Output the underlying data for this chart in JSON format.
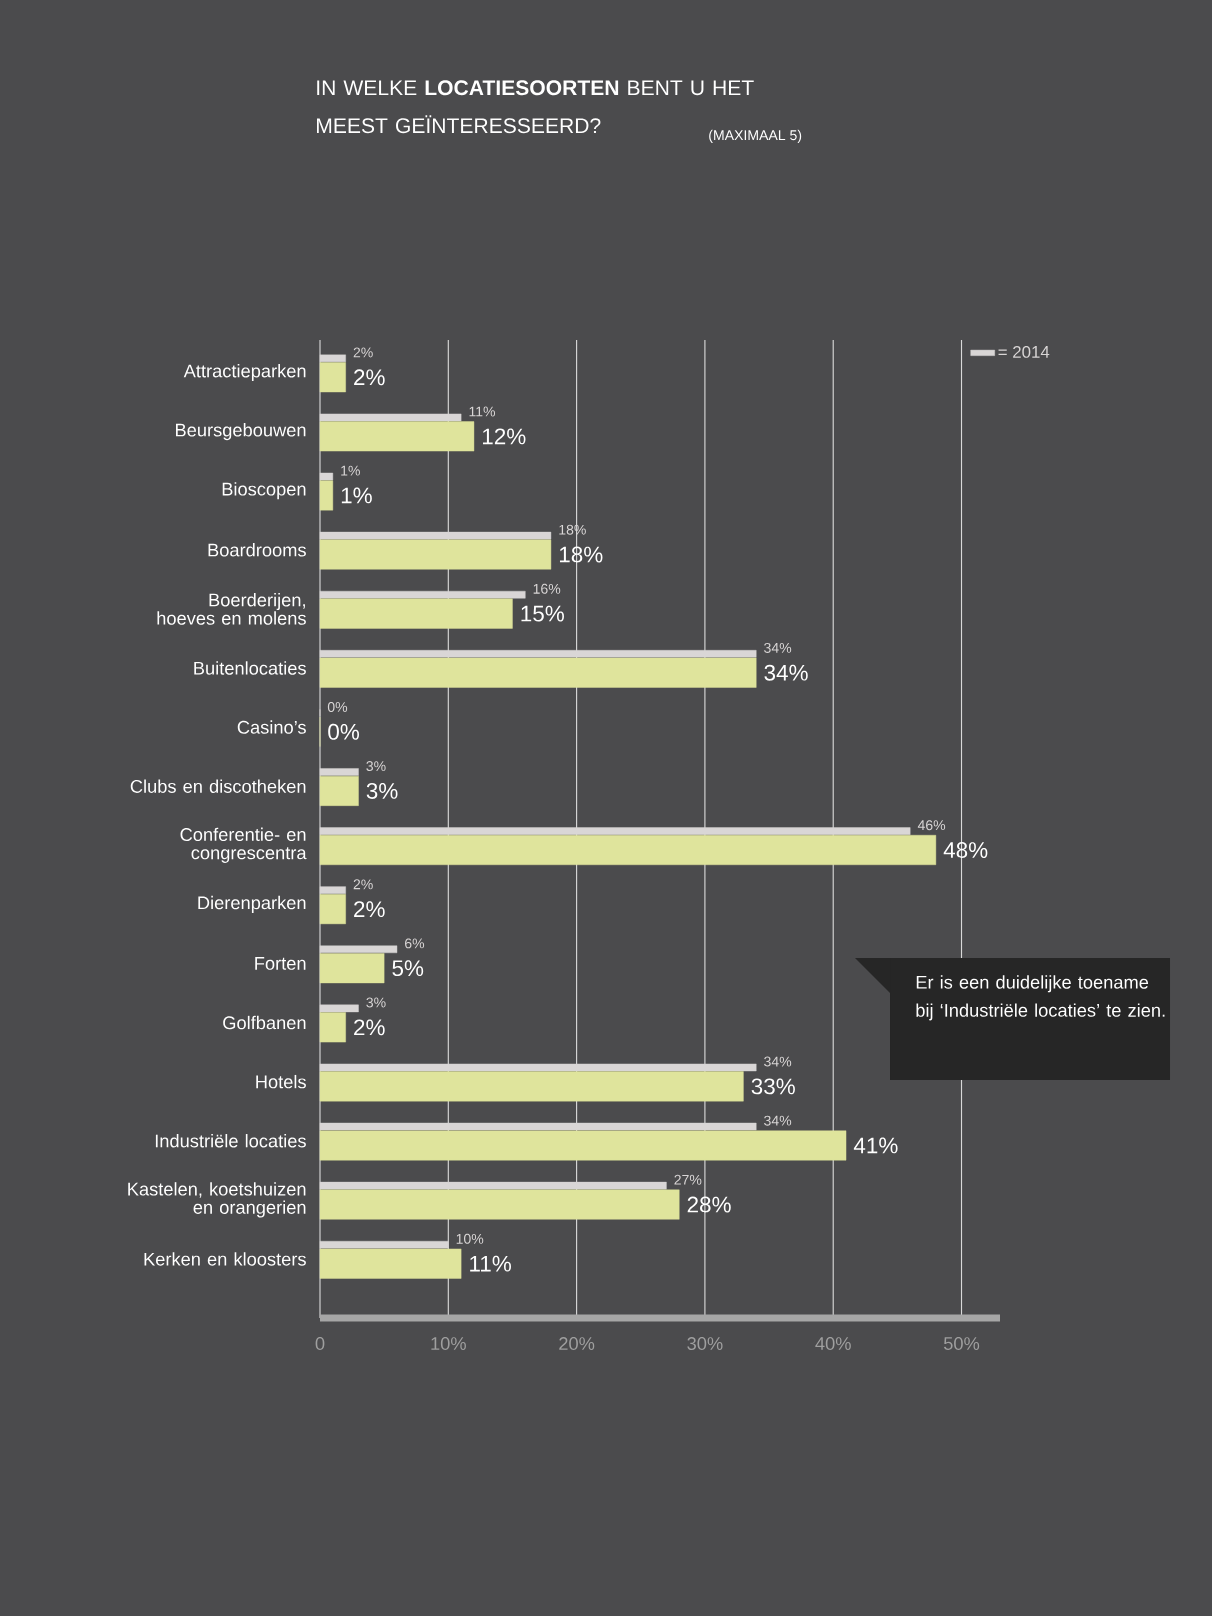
{
  "chart_data": {
    "type": "bar",
    "orientation": "horizontal",
    "title": "IN WELKE **LOCATIESOORTEN** BENT U HET MEEST GEÏNTERESSEERD?",
    "subtitle": "(MAXIMAAL 5)",
    "categories": [
      "Attractieparken",
      "Beursgebouwen",
      "Bioscopen",
      "Boardrooms",
      "Boerderijen, hoeves en molens",
      "Buitenlocaties",
      "Casino’s",
      "Clubs en discotheken",
      "Conferentie- en congrescentra",
      "Dierenparken",
      "Forten",
      "Golfbanen",
      "Hotels",
      "Industriële locaties",
      "Kastelen, koetshuizen en orangerien",
      "Kerken en kloosters"
    ],
    "series": [
      {
        "name": "= 2014",
        "color": "#d9d6d6",
        "values": [
          2,
          11,
          1,
          18,
          16,
          34,
          0,
          3,
          46,
          2,
          6,
          3,
          34,
          34,
          27,
          10
        ],
        "value_labels": [
          "2%",
          "11%",
          "1%",
          "18%",
          "16%",
          "34%",
          "0%",
          "3%",
          "46%",
          "2%",
          "6%",
          "3%",
          "34%",
          "34%",
          "27%",
          "10%"
        ]
      },
      {
        "color": "#dfe49c",
        "values": [
          2,
          12,
          1,
          18,
          15,
          34,
          0,
          3,
          48,
          2,
          5,
          2,
          33,
          41,
          28,
          11
        ],
        "value_labels": [
          "2%",
          "12%",
          "1%",
          "18%",
          "15%",
          "34%",
          "0%",
          "3%",
          "48%",
          "2%",
          "5%",
          "2%",
          "33%",
          "41%",
          "28%",
          "11%"
        ]
      }
    ],
    "xlim": [
      0,
      53
    ],
    "xticks": [
      0,
      {
        "value": 10,
        "label": "10%"
      },
      {
        "value": 20,
        "label": "20%"
      },
      {
        "value": 30,
        "label": "30%"
      },
      {
        "value": 40,
        "label": "40%"
      },
      {
        "value": 50,
        "label": "50%"
      }
    ],
    "grid": "x",
    "legend": "top right",
    "annotations": [
      "Er is een duidelijke toename bij ‘Industriële locaties’ te zien."
    ]
  }
}
